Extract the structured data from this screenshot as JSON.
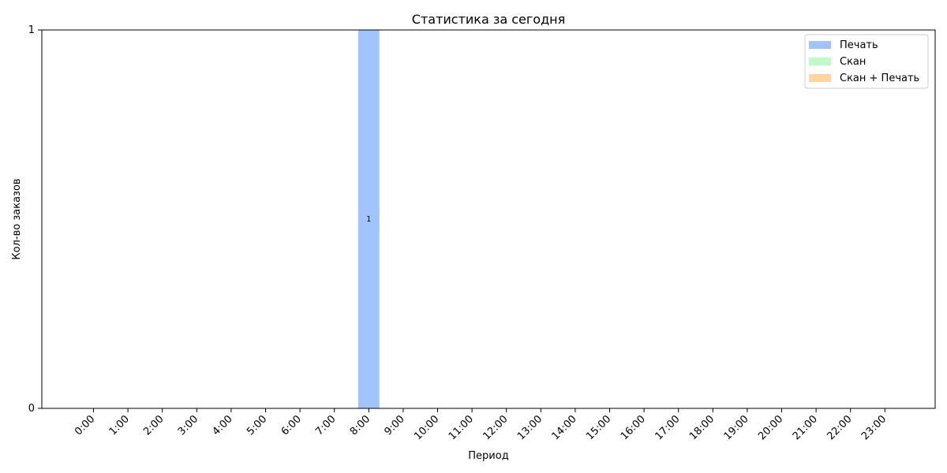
{
  "chart_data": {
    "type": "bar",
    "stacked": true,
    "title": "Статистика за сегодня",
    "xlabel": "Период",
    "ylabel": "Кол-во заказов",
    "ylim": [
      0,
      1
    ],
    "yticks": [
      0,
      1
    ],
    "categories": [
      "0:00",
      "1:00",
      "2:00",
      "3:00",
      "4:00",
      "5:00",
      "6:00",
      "7:00",
      "8:00",
      "9:00",
      "10:00",
      "11:00",
      "12:00",
      "13:00",
      "14:00",
      "15:00",
      "16:00",
      "17:00",
      "18:00",
      "19:00",
      "20:00",
      "21:00",
      "22:00",
      "23:00"
    ],
    "series": [
      {
        "name": "Печать",
        "color": "#a1c4fd",
        "values": [
          0,
          0,
          0,
          0,
          0,
          0,
          0,
          0,
          1,
          0,
          0,
          0,
          0,
          0,
          0,
          0,
          0,
          0,
          0,
          0,
          0,
          0,
          0,
          0
        ]
      },
      {
        "name": "Скан",
        "color": "#bdfcc9",
        "values": [
          0,
          0,
          0,
          0,
          0,
          0,
          0,
          0,
          0,
          0,
          0,
          0,
          0,
          0,
          0,
          0,
          0,
          0,
          0,
          0,
          0,
          0,
          0,
          0
        ]
      },
      {
        "name": "Скан + Печать",
        "color": "#fdd5a1",
        "values": [
          0,
          0,
          0,
          0,
          0,
          0,
          0,
          0,
          0,
          0,
          0,
          0,
          0,
          0,
          0,
          0,
          0,
          0,
          0,
          0,
          0,
          0,
          0,
          0
        ]
      }
    ],
    "legend_position": "top-right",
    "grid": false
  }
}
